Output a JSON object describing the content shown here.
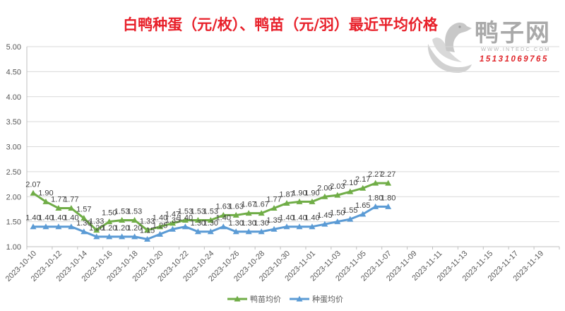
{
  "colors": {
    "title": "#E8202A",
    "logo_text": "#A9A9A9",
    "logo_website": "#B4B4B4",
    "logo_phone": "#E0262B"
  },
  "logo": {
    "name": "鸭子网",
    "website": "WWW.INTEDC.COM",
    "phone": "15131069765"
  },
  "chart_data": {
    "type": "line",
    "title": "白鸭种蛋（元/枚）、鸭苗（元/羽）最近平均价格",
    "x": [
      "2023-10-10",
      "2023-10-11",
      "2023-10-12",
      "2023-10-13",
      "2023-10-14",
      "2023-10-15",
      "2023-10-16",
      "2023-10-17",
      "2023-10-18",
      "2023-10-19",
      "2023-10-20",
      "2023-10-21",
      "2023-10-22",
      "2023-10-23",
      "2023-10-24",
      "2023-10-25",
      "2023-10-26",
      "2023-10-27",
      "2023-10-28",
      "2023-10-29",
      "2023-10-30",
      "2023-10-31",
      "2023-11-01",
      "2023-11-02",
      "2023-11-03",
      "2023-11-04",
      "2023-11-05",
      "2023-11-06",
      "2023-11-07"
    ],
    "x_ticks": [
      "2023-10-10",
      "2023-10-12",
      "2023-10-14",
      "2023-10-16",
      "2023-10-18",
      "2023-10-20",
      "2023-10-22",
      "2023-10-24",
      "2023-10-26",
      "2023-10-28",
      "2023-10-30",
      "2023-11-01",
      "2023-11-03",
      "2023-11-05",
      "2023-11-07",
      "2023-11-09",
      "2023-11-11",
      "2023-11-13",
      "2023-11-15",
      "2023-11-17",
      "2023-11-19"
    ],
    "y_ticks": [
      "1.00",
      "1.50",
      "2.00",
      "2.50",
      "3.00",
      "3.50",
      "4.00",
      "4.50",
      "5.00"
    ],
    "ylim": [
      1,
      5
    ],
    "grid": true,
    "data_labels": true,
    "legend_position": "bottom",
    "series": [
      {
        "name": "鸭苗均价",
        "color": "#70AD47",
        "values": [
          2.07,
          1.9,
          1.77,
          1.77,
          1.57,
          1.33,
          1.5,
          1.53,
          1.53,
          1.33,
          1.4,
          1.47,
          1.53,
          1.53,
          1.53,
          1.63,
          1.63,
          1.67,
          1.67,
          1.77,
          1.87,
          1.9,
          1.9,
          2.0,
          2.03,
          2.1,
          2.17,
          2.27,
          2.27
        ]
      },
      {
        "name": "种蛋均价",
        "color": "#5B9BD5",
        "values": [
          1.4,
          1.4,
          1.4,
          1.4,
          1.3,
          1.2,
          1.2,
          1.2,
          1.2,
          1.15,
          1.25,
          1.35,
          1.4,
          1.3,
          1.3,
          1.4,
          1.3,
          1.3,
          1.3,
          1.35,
          1.4,
          1.4,
          1.4,
          1.45,
          1.5,
          1.55,
          1.65,
          1.8,
          1.8
        ]
      }
    ]
  }
}
